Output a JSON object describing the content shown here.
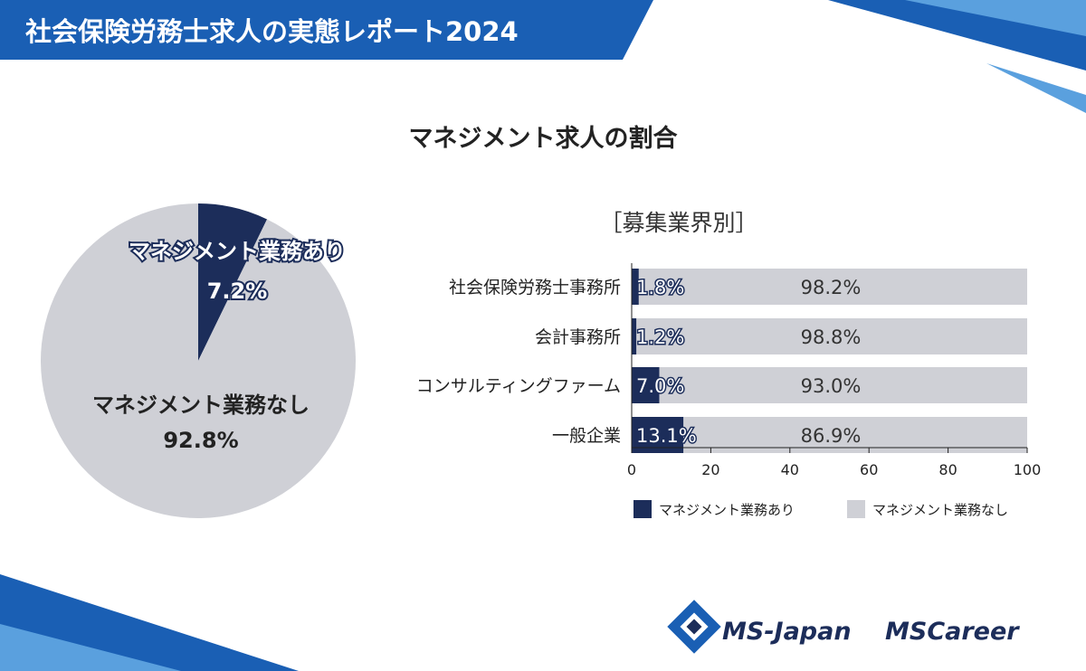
{
  "header": {
    "title": "社会保険労務士求人の実態レポート2024"
  },
  "report_title": "マネジメント求人の割合",
  "bar_section_title": "［募集業界別］",
  "colors": {
    "dark": "#1c2d5a",
    "light": "#cfd0d6",
    "accent_blue": "#1a5fb4"
  },
  "chart_data": [
    {
      "type": "pie",
      "slices": [
        {
          "name": "マネジメント業務あり",
          "value": 7.2,
          "label": "7.2%",
          "color": "#1c2d5a"
        },
        {
          "name": "マネジメント業務なし",
          "value": 92.8,
          "label": "92.8%",
          "color": "#cfd0d6"
        }
      ]
    },
    {
      "type": "bar",
      "orientation": "horizontal",
      "stacked": true,
      "categories": [
        "社会保険労務士事務所",
        "会計事務所",
        "コンサルティングファーム",
        "一般企業"
      ],
      "series": [
        {
          "name": "マネジメント業務あり",
          "values": [
            1.8,
            1.2,
            7.0,
            13.1
          ],
          "labels": [
            "1.8%",
            "1.2%",
            "7.0%",
            "13.1%"
          ],
          "color": "#1c2d5a"
        },
        {
          "name": "マネジメント業務なし",
          "values": [
            98.2,
            98.8,
            93.0,
            86.9
          ],
          "labels": [
            "98.2%",
            "98.8%",
            "93.0%",
            "86.9%"
          ],
          "color": "#cfd0d6"
        }
      ],
      "xlim": [
        0,
        100
      ],
      "xticks": [
        "0",
        "20",
        "40",
        "60",
        "80",
        "100"
      ],
      "legend": "bottom"
    }
  ],
  "logos": {
    "ms_japan": "MS-Japan",
    "ms_career": "MSCareer"
  }
}
